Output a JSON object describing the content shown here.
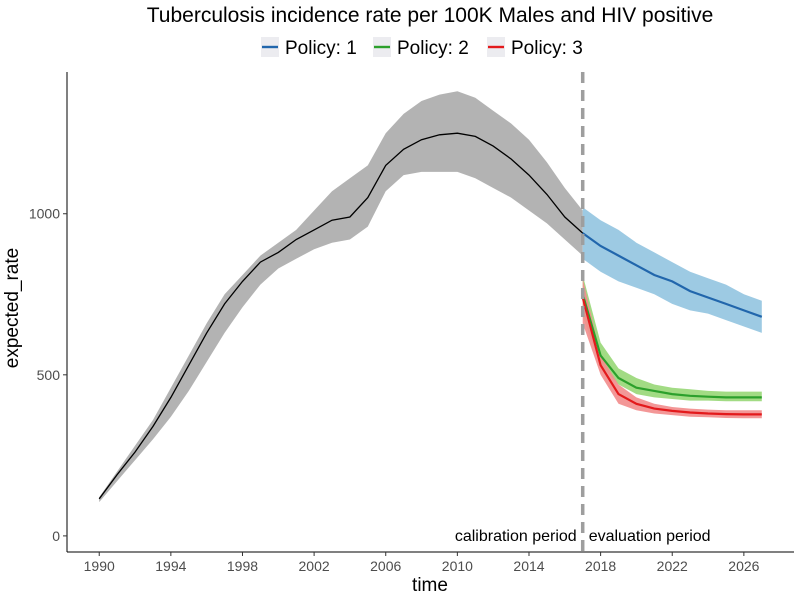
{
  "chart_data": {
    "type": "line",
    "title": "Tuberculosis incidence rate per 100K Males and HIV positive",
    "xlabel": "time",
    "ylabel": "expected_rate",
    "xlim": [
      1988.2,
      2028.8
    ],
    "ylim": [
      -50,
      1440
    ],
    "x_ticks": [
      1990,
      1994,
      1998,
      2002,
      2006,
      2010,
      2014,
      2018,
      2022,
      2026
    ],
    "y_ticks": [
      0,
      500,
      1000
    ],
    "legend_position": "top",
    "grid": false,
    "divider": {
      "x": 2017,
      "color": "#9e9e9e"
    },
    "annotations": [
      {
        "text": "calibration period",
        "x": 2017,
        "y": 0,
        "side": "left"
      },
      {
        "text": "evaluation period",
        "x": 2017,
        "y": 0,
        "side": "right"
      }
    ],
    "calibration": {
      "color": "#000000",
      "band_color": "#b3b3b3",
      "x": [
        1990,
        1991,
        1992,
        1993,
        1994,
        1995,
        1996,
        1997,
        1998,
        1999,
        2000,
        2001,
        2002,
        2003,
        2004,
        2005,
        2006,
        2007,
        2008,
        2009,
        2010,
        2011,
        2012,
        2013,
        2014,
        2015,
        2016,
        2017
      ],
      "values": [
        115,
        190,
        260,
        340,
        430,
        530,
        630,
        720,
        790,
        850,
        880,
        920,
        950,
        980,
        990,
        1050,
        1150,
        1200,
        1230,
        1245,
        1250,
        1240,
        1210,
        1170,
        1120,
        1060,
        990,
        940
      ],
      "lower": [
        105,
        170,
        235,
        300,
        370,
        450,
        540,
        630,
        710,
        780,
        830,
        860,
        890,
        910,
        920,
        960,
        1070,
        1120,
        1130,
        1130,
        1130,
        1110,
        1080,
        1050,
        1010,
        970,
        920,
        870
      ],
      "upper": [
        120,
        200,
        280,
        360,
        460,
        560,
        660,
        750,
        810,
        870,
        910,
        950,
        1010,
        1070,
        1110,
        1150,
        1250,
        1310,
        1350,
        1370,
        1380,
        1360,
        1320,
        1280,
        1230,
        1160,
        1080,
        1010
      ]
    },
    "series": [
      {
        "name": "Policy: 1",
        "color": "#2166ac",
        "band_color": "#95c5e1",
        "x": [
          2017,
          2018,
          2019,
          2020,
          2021,
          2022,
          2023,
          2024,
          2025,
          2026,
          2027
        ],
        "values": [
          940,
          900,
          870,
          840,
          810,
          790,
          760,
          740,
          720,
          700,
          680
        ],
        "lower": [
          860,
          820,
          790,
          770,
          750,
          720,
          700,
          690,
          670,
          650,
          630
        ],
        "upper": [
          1020,
          980,
          950,
          910,
          880,
          850,
          820,
          800,
          780,
          750,
          730
        ]
      },
      {
        "name": "Policy: 2",
        "color": "#2ca02c",
        "band_color": "#9ad87a",
        "x": [
          2017,
          2018,
          2019,
          2020,
          2021,
          2022,
          2023,
          2024,
          2025,
          2026,
          2027
        ],
        "values": [
          750,
          560,
          490,
          460,
          450,
          440,
          435,
          432,
          430,
          430,
          430
        ],
        "lower": [
          680,
          530,
          470,
          440,
          430,
          425,
          420,
          420,
          418,
          418,
          418
        ],
        "upper": [
          810,
          600,
          520,
          490,
          470,
          460,
          455,
          450,
          448,
          448,
          448
        ]
      },
      {
        "name": "Policy: 3",
        "color": "#e31a1c",
        "band_color": "#f28e8e",
        "x": [
          2017,
          2018,
          2019,
          2020,
          2021,
          2022,
          2023,
          2024,
          2025,
          2026,
          2027
        ],
        "values": [
          740,
          530,
          440,
          410,
          395,
          388,
          383,
          380,
          378,
          377,
          377
        ],
        "lower": [
          660,
          500,
          410,
          390,
          380,
          375,
          370,
          368,
          366,
          365,
          365
        ],
        "upper": [
          800,
          560,
          470,
          430,
          410,
          400,
          395,
          392,
          390,
          390,
          390
        ]
      }
    ]
  }
}
